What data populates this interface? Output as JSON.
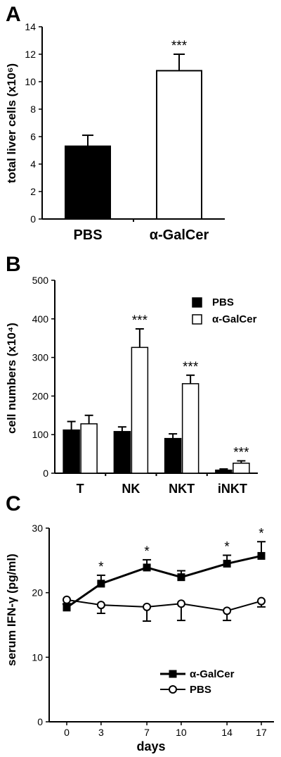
{
  "colors": {
    "filled": "#000000",
    "open": "#ffffff",
    "axis": "#000000"
  },
  "chart_data": [
    {
      "panel": "A",
      "type": "bar",
      "ylabel": "total liver cells (x10⁶)",
      "ylim": [
        0,
        14
      ],
      "yticks": [
        0,
        2,
        4,
        6,
        8,
        10,
        12,
        14
      ],
      "categories": [
        "PBS",
        "α-GalCer"
      ],
      "values": [
        5.3,
        10.8
      ],
      "errors": [
        0.8,
        1.2
      ],
      "fills": [
        "filled",
        "open"
      ],
      "significance": [
        "",
        "***"
      ]
    },
    {
      "panel": "B",
      "type": "bar",
      "ylabel": "cell numbers (x10⁴)",
      "ylim": [
        0,
        500
      ],
      "yticks": [
        0,
        100,
        200,
        300,
        400,
        500
      ],
      "categories": [
        "T",
        "NK",
        "NKT",
        "iNKT"
      ],
      "series": [
        {
          "name": "PBS",
          "fill": "filled",
          "values": [
            112,
            108,
            90,
            8
          ],
          "errors": [
            22,
            12,
            12,
            3
          ],
          "significance": [
            "",
            "",
            "",
            ""
          ]
        },
        {
          "name": "α-GalCer",
          "fill": "open",
          "values": [
            128,
            326,
            232,
            26
          ],
          "errors": [
            22,
            48,
            22,
            6
          ],
          "significance": [
            "",
            "***",
            "***",
            "***"
          ]
        }
      ],
      "legend": [
        "PBS",
        "α-GalCer"
      ],
      "legend_position": "top-right"
    },
    {
      "panel": "C",
      "type": "line",
      "ylabel": "serum IFN-γ (pg/ml)",
      "xlabel": "days",
      "ylim": [
        0,
        30
      ],
      "yticks": [
        0,
        10,
        20,
        30
      ],
      "x": [
        0,
        3,
        7,
        10,
        14,
        17
      ],
      "series": [
        {
          "name": "α-GalCer",
          "marker": "filled-square",
          "values": [
            17.7,
            21.4,
            23.9,
            22.4,
            24.5,
            25.7
          ],
          "errors": [
            0.5,
            1.3,
            1.2,
            1.0,
            1.3,
            2.2
          ],
          "significance": [
            "",
            "*",
            "*",
            "",
            "*",
            "*"
          ]
        },
        {
          "name": "PBS",
          "marker": "open-circle",
          "values": [
            18.9,
            18.1,
            17.8,
            18.3,
            17.2,
            18.7
          ],
          "errors": [
            0.6,
            1.3,
            2.2,
            2.6,
            1.5,
            0.9
          ]
        }
      ],
      "legend": [
        "α-GalCer",
        "PBS"
      ],
      "legend_position": "bottom-right"
    }
  ]
}
